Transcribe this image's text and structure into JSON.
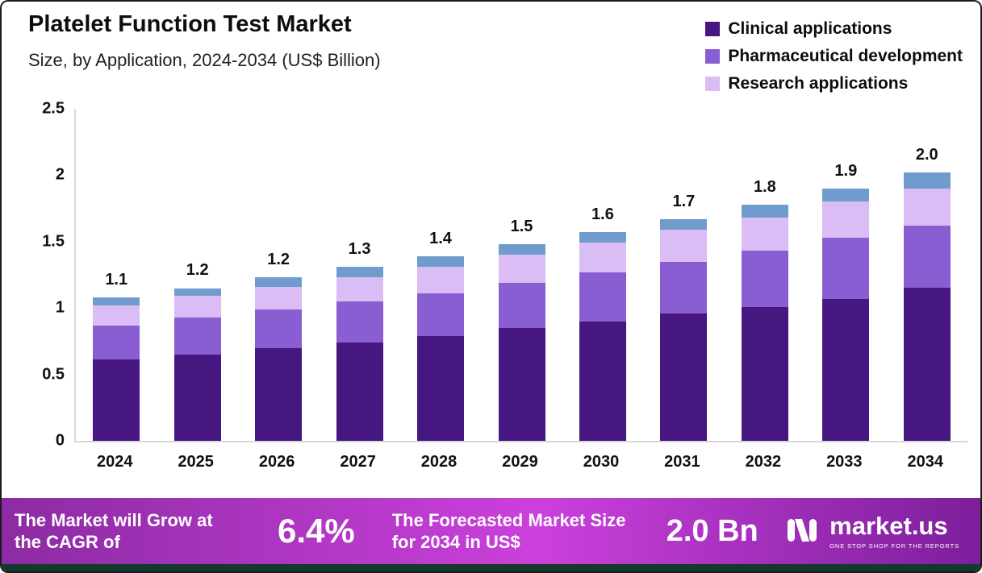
{
  "header": {
    "title": "Platelet Function Test Market",
    "subtitle": "Size, by Application, 2024-2034 (US$ Billion)"
  },
  "legend": [
    {
      "label": "Clinical applications",
      "color": "#461780"
    },
    {
      "label": "Pharmaceutical development",
      "color": "#8a5ed3"
    },
    {
      "label": "Research applications",
      "color": "#d9bdf4"
    }
  ],
  "chart_data": {
    "type": "bar",
    "stacked": true,
    "title": "Platelet Function Test Market",
    "subtitle": "Size, by Application, 2024-2034 (US$ Billion)",
    "unit": "US$ Billion",
    "categories": [
      "2024",
      "2025",
      "2026",
      "2027",
      "2028",
      "2029",
      "2030",
      "2031",
      "2032",
      "2033",
      "2034"
    ],
    "series": [
      {
        "name": "Clinical applications",
        "color": "#461780",
        "values": [
          0.61,
          0.65,
          0.7,
          0.74,
          0.79,
          0.85,
          0.9,
          0.96,
          1.01,
          1.07,
          1.15
        ]
      },
      {
        "name": "Pharmaceutical development",
        "color": "#8a5ed3",
        "values": [
          0.26,
          0.28,
          0.29,
          0.31,
          0.32,
          0.34,
          0.37,
          0.39,
          0.42,
          0.46,
          0.47
        ]
      },
      {
        "name": "Research applications",
        "color": "#d9bdf4",
        "values": [
          0.15,
          0.16,
          0.17,
          0.18,
          0.2,
          0.21,
          0.22,
          0.24,
          0.25,
          0.27,
          0.28
        ]
      },
      {
        "name": "",
        "color": "#6f9ccd",
        "values": [
          0.06,
          0.06,
          0.07,
          0.08,
          0.08,
          0.08,
          0.08,
          0.08,
          0.1,
          0.1,
          0.12
        ]
      }
    ],
    "totals_labels": [
      "1.1",
      "1.2",
      "1.2",
      "1.3",
      "1.4",
      "1.5",
      "1.6",
      "1.7",
      "1.8",
      "1.9",
      "2.0"
    ],
    "y_ticks": [
      "2.5",
      "2",
      "1.5",
      "1",
      "0.5",
      "0"
    ],
    "ylim": [
      0,
      2.5
    ],
    "grid": false,
    "legend_position": "top-right"
  },
  "banner": {
    "cagr_text": "The Market will Grow at the CAGR of",
    "cagr_value": "6.4%",
    "forecast_text": "The Forecasted Market Size for 2034 in US$",
    "forecast_value": "2.0 Bn",
    "logo_text": "market.us",
    "logo_tagline": "ONE STOP SHOP FOR THE REPORTS",
    "gradient": [
      "#8c2ba3",
      "#cb40dc",
      "#7c1f9b"
    ],
    "strip_color": "#113a2c"
  }
}
